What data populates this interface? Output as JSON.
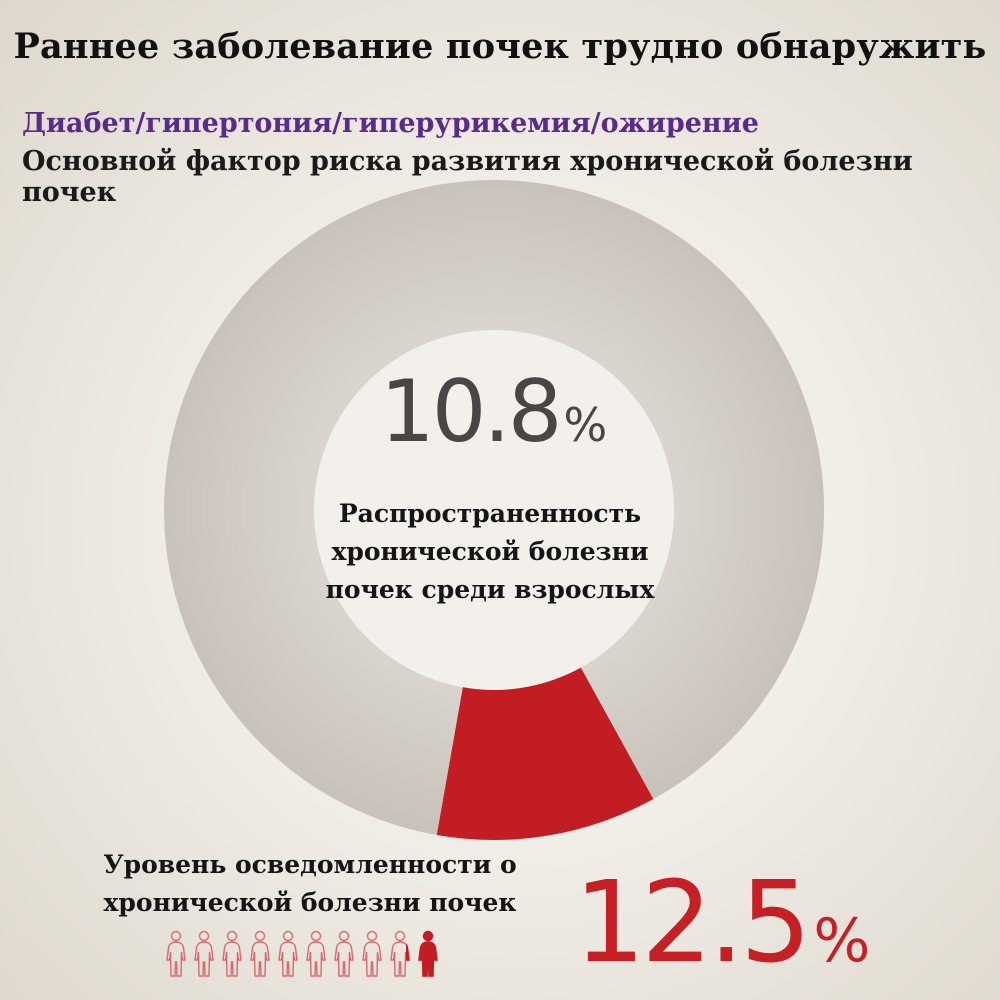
{
  "title": "Раннее заболевание почек трудно обнаружить",
  "subtitle_accent": "Диабет/гипертония/гиперурикемия/ожирение",
  "subtitle": "Основной фактор риска развития хронической болезни почек",
  "colors": {
    "accent_red": "#c21d23",
    "ring_gray": "#cfcac3",
    "accent_purple": "#5b2b8c"
  },
  "prevalence": {
    "number": "10.8",
    "percent_sign": "%",
    "label_lines": [
      "Распространенность",
      "хронической болезни",
      "почек среди взрослых"
    ]
  },
  "awareness": {
    "label_lines": [
      "Уровень осведомленности о",
      "хронической болезни почек"
    ],
    "number": "12.5",
    "percent_sign": "%",
    "people_total": 10,
    "people_highlighted": 1.25
  },
  "chart_data": {
    "type": "pie",
    "variant": "donut",
    "title": "",
    "slices": [
      {
        "label": "",
        "value": 10.8,
        "color": "#c21d23"
      },
      {
        "label": "",
        "value": 89.2,
        "color": "#cfcac3"
      }
    ]
  }
}
